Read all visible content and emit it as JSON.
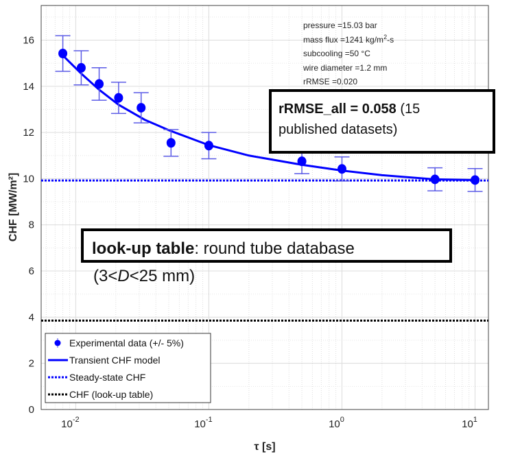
{
  "chart_data": {
    "type": "line",
    "xscale": "log",
    "xlim": [
      0.0055,
      12.6
    ],
    "ylim": [
      0,
      17.5
    ],
    "xlabel": "τ [s]",
    "ylabel": "CHF [MW/m²]",
    "xticks": [
      {
        "v": 0.01,
        "base": "10",
        "exp": "-2"
      },
      {
        "v": 0.1,
        "base": "10",
        "exp": "-1"
      },
      {
        "v": 1,
        "base": "10",
        "exp": "0"
      },
      {
        "v": 10,
        "base": "10",
        "exp": "1"
      }
    ],
    "yticks": [
      0,
      2,
      4,
      6,
      8,
      10,
      12,
      14,
      16
    ],
    "grid": true,
    "series": [
      {
        "name": "Experimental data (+/- 5%)",
        "kind": "errorbar",
        "color": "#0000ff",
        "error_pct": 5,
        "x": [
          0.008,
          0.011,
          0.015,
          0.021,
          0.031,
          0.052,
          0.1,
          0.5,
          1,
          5,
          10
        ],
        "y": [
          15.42,
          14.8,
          14.1,
          13.5,
          13.07,
          11.55,
          11.43,
          10.75,
          10.42,
          9.97,
          9.94
        ]
      },
      {
        "name": "Transient CHF model",
        "kind": "line",
        "color": "#0000ff",
        "x": [
          0.0078,
          0.011,
          0.015,
          0.021,
          0.033,
          0.05,
          0.1,
          0.2,
          0.5,
          1,
          2,
          5,
          10
        ],
        "y": [
          15.4,
          14.55,
          13.85,
          13.2,
          12.55,
          12.1,
          11.45,
          11.0,
          10.6,
          10.35,
          10.15,
          9.97,
          9.94
        ]
      },
      {
        "name": "Steady-state CHF",
        "kind": "hline",
        "color": "#0000ff",
        "style": "dotted",
        "y": 9.92
      },
      {
        "name": "CHF (look-up table)",
        "kind": "hline",
        "color": "#000000",
        "style": "dotted",
        "y": 3.85
      }
    ],
    "annotation_lines": [
      "pressure =15.03 bar",
      "mass flux =1241 kg/m",
      "2",
      "-s",
      "subcooling =50 °C",
      "wire diameter =1.2 mm",
      "rRMSE =0.020"
    ],
    "legend_placement": "bottom-left"
  },
  "rmse_box": {
    "bold1": "rRMSE_all = 0.058",
    "rest1": " (15",
    "line2": "published datasets)"
  },
  "lookup_box": {
    "bold": "look-up table",
    "rest": ": round tube database",
    "l2a": "(3<",
    "l2b": "D",
    "l2c": "<25 mm)"
  }
}
